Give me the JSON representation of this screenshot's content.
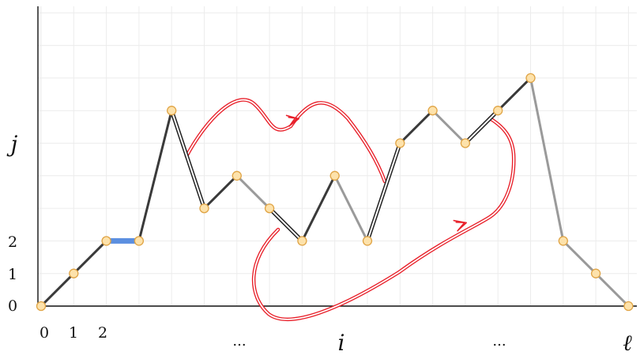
{
  "colors": {
    "grid": "#ececec",
    "axis": "#111111",
    "edge_dark": "#3a3a3a",
    "edge_light": "#9a9a9a",
    "edge_highlight": "#5b8fe0",
    "node_fill": "#fde2ab",
    "node_stroke": "#e0a445",
    "arrow": "#e8202a"
  },
  "labels": {
    "x_ticks": [
      "0",
      "1",
      "2"
    ],
    "x_ellipsis_left": "...",
    "x_var": "i",
    "x_ellipsis_right": "...",
    "x_end": "ℓ",
    "y_ticks": [
      "0",
      "1",
      "2"
    ],
    "y_var": "j"
  },
  "path": {
    "nodes": [
      {
        "i": 0,
        "j": 0
      },
      {
        "i": 1,
        "j": 1
      },
      {
        "i": 2,
        "j": 2
      },
      {
        "i": 3,
        "j": 2
      },
      {
        "i": 4,
        "j": 6
      },
      {
        "i": 5,
        "j": 3
      },
      {
        "i": 6,
        "j": 4
      },
      {
        "i": 7,
        "j": 3
      },
      {
        "i": 8,
        "j": 2
      },
      {
        "i": 9,
        "j": 4
      },
      {
        "i": 10,
        "j": 2
      },
      {
        "i": 11,
        "j": 5
      },
      {
        "i": 12,
        "j": 6
      },
      {
        "i": 13,
        "j": 5
      },
      {
        "i": 14,
        "j": 6
      },
      {
        "i": 15,
        "j": 7
      },
      {
        "i": 16,
        "j": 2
      },
      {
        "i": 17,
        "j": 1
      },
      {
        "i": 18,
        "j": 0
      }
    ],
    "edge_styles": [
      "dark",
      "dark",
      "highlight",
      "dark",
      "double",
      "dark",
      "light",
      "double",
      "dark",
      "light",
      "double",
      "dark",
      "light",
      "double",
      "dark",
      "light",
      "light",
      "light"
    ]
  }
}
